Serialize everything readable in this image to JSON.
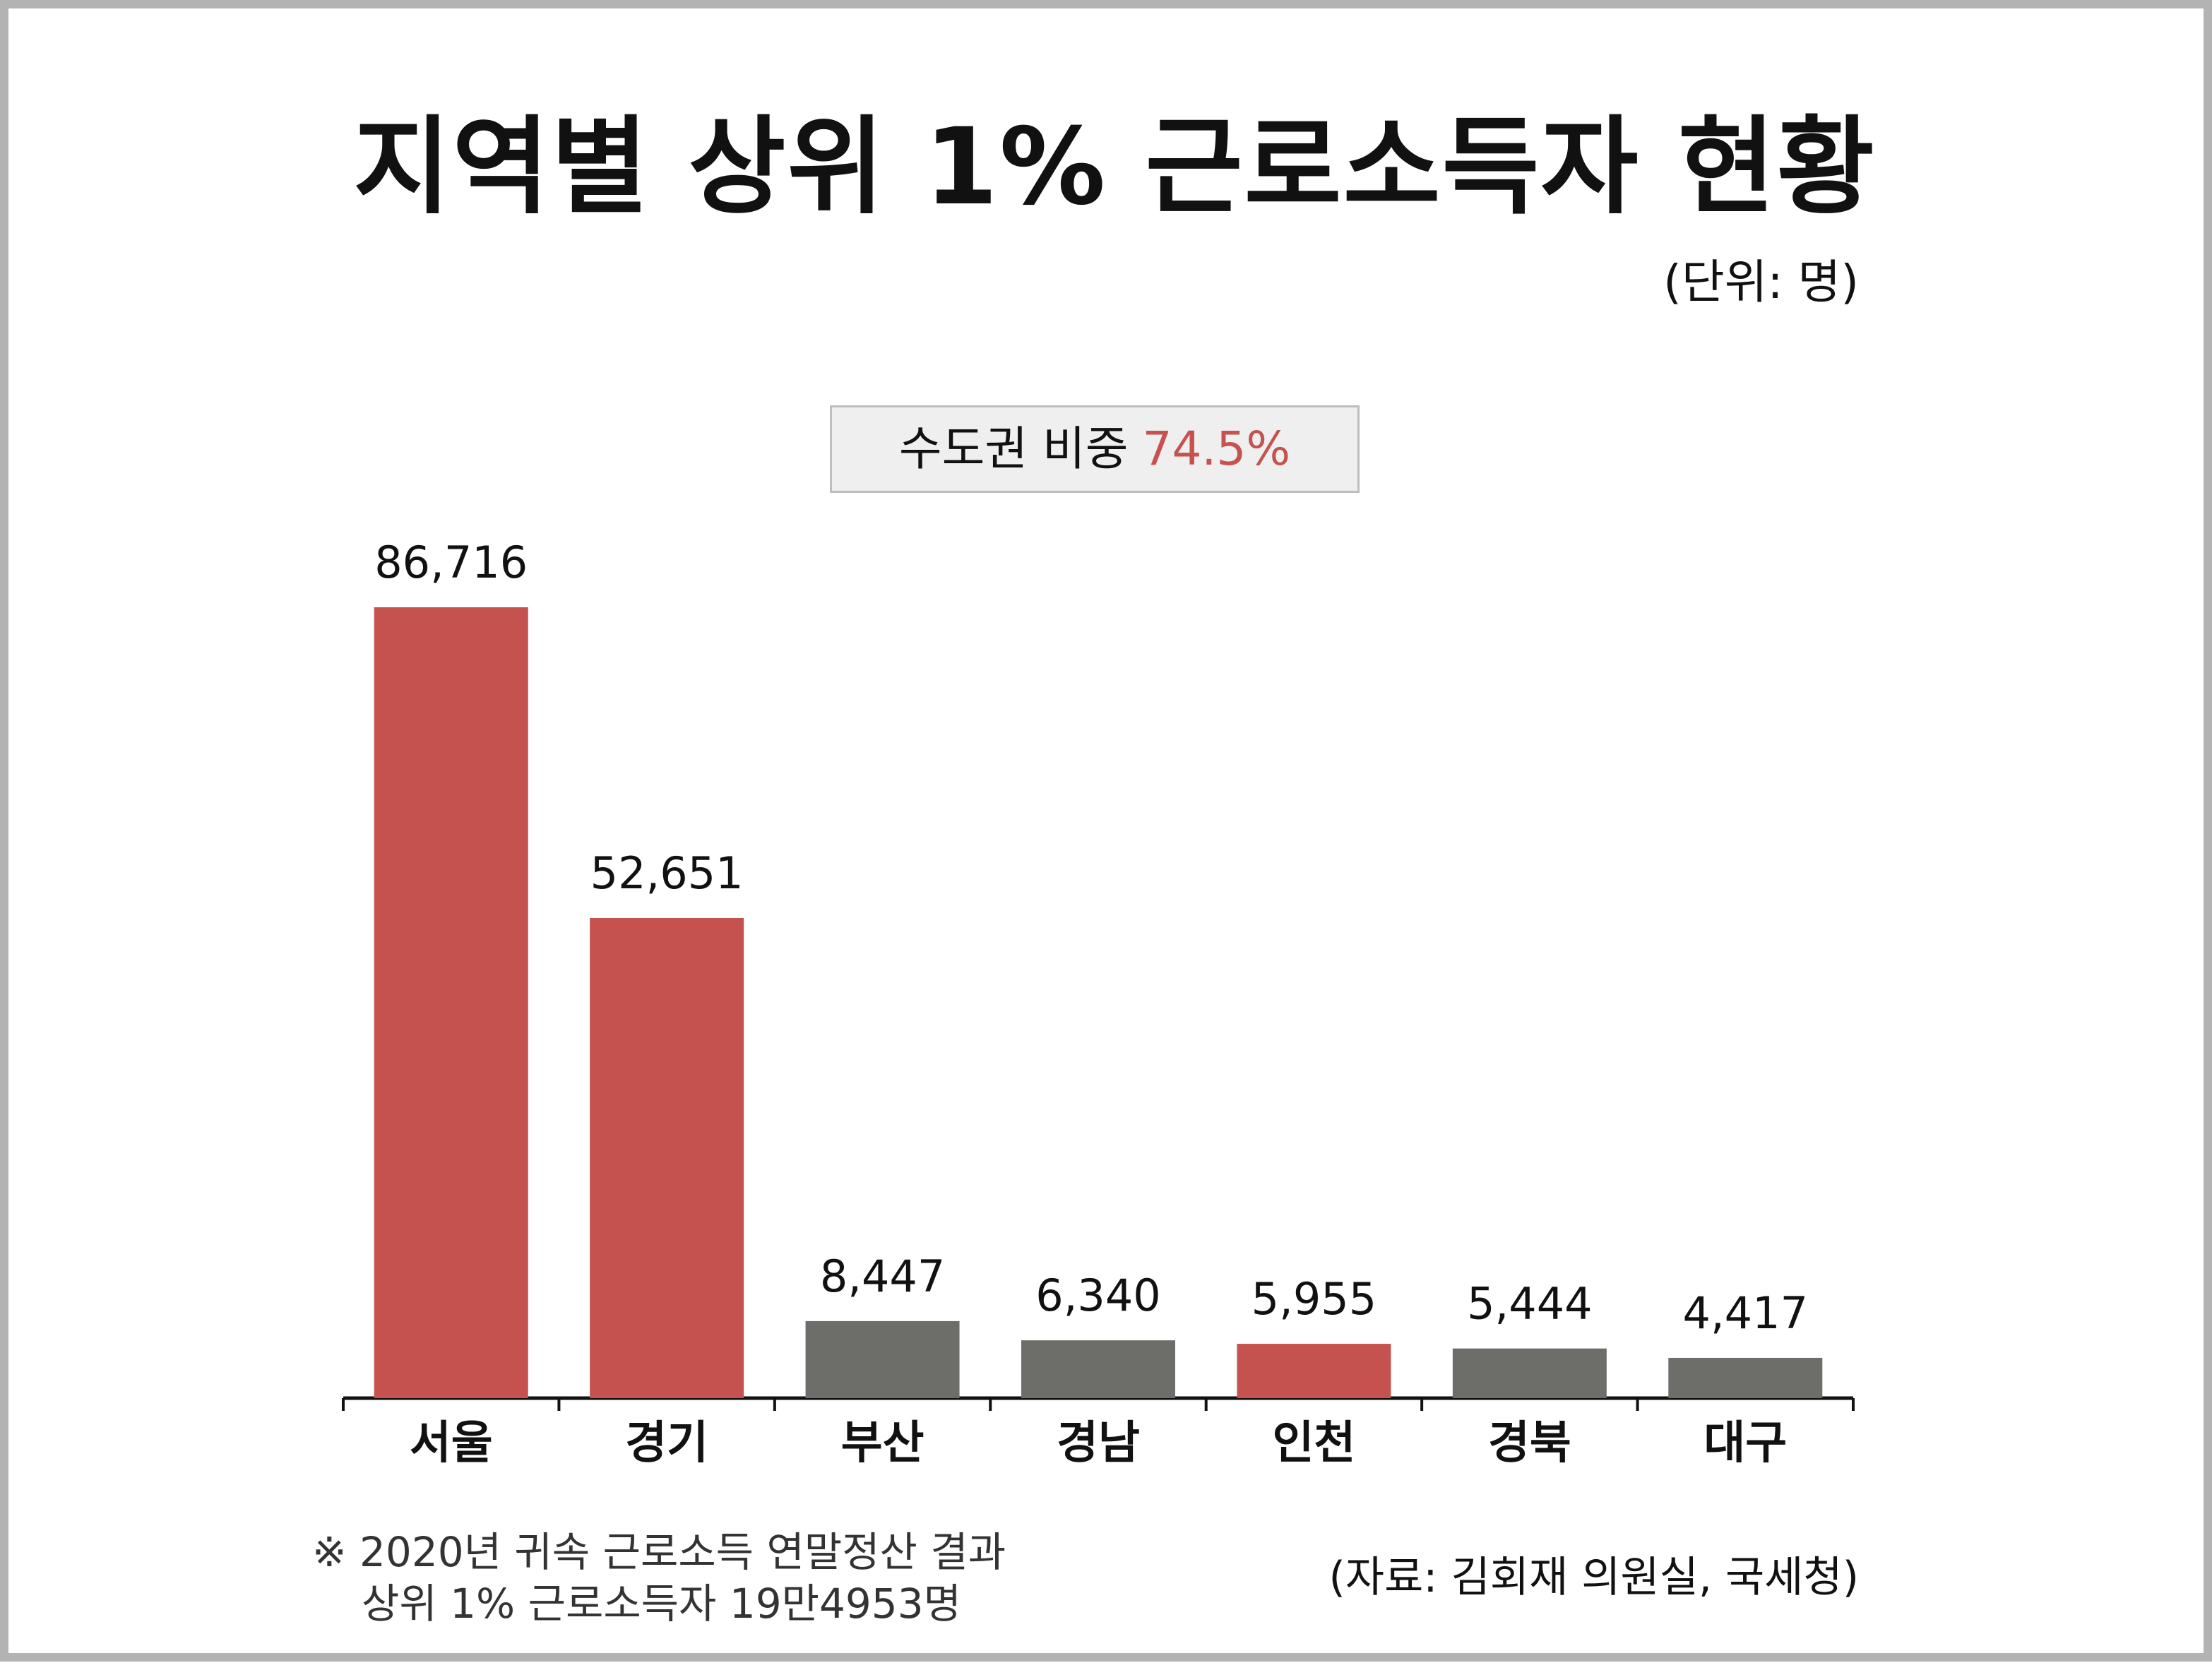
{
  "title": "지역별 상위 1% 근로소득자 현황",
  "unit_label": "(단위: 명)",
  "callout": {
    "label": "수도권 비중",
    "value": "74.5%"
  },
  "colors": {
    "highlight": "#c5524f",
    "other": "#6d6d69",
    "axis": "#111111"
  },
  "chart_data": {
    "type": "bar",
    "categories": [
      "서울",
      "경기",
      "부산",
      "경남",
      "인천",
      "경북",
      "대구"
    ],
    "values": [
      86716,
      52651,
      8447,
      6340,
      5955,
      5444,
      4417
    ],
    "value_labels": [
      "86,716",
      "52,651",
      "8,447",
      "6,340",
      "5,955",
      "5,444",
      "4,417"
    ],
    "highlighted": [
      true,
      true,
      false,
      false,
      true,
      false,
      false
    ],
    "ylim": [
      0,
      90000
    ],
    "grid": false,
    "title": "지역별 상위 1% 근로소득자 현황",
    "xlabel": "",
    "ylabel": ""
  },
  "footnote": {
    "line1": "※ 2020년 귀속 근로소득 연말정산 결과",
    "line2": "상위 1% 근로소득자 19만4953명"
  },
  "source": "(자료: 김회재 의원실, 국세청)"
}
